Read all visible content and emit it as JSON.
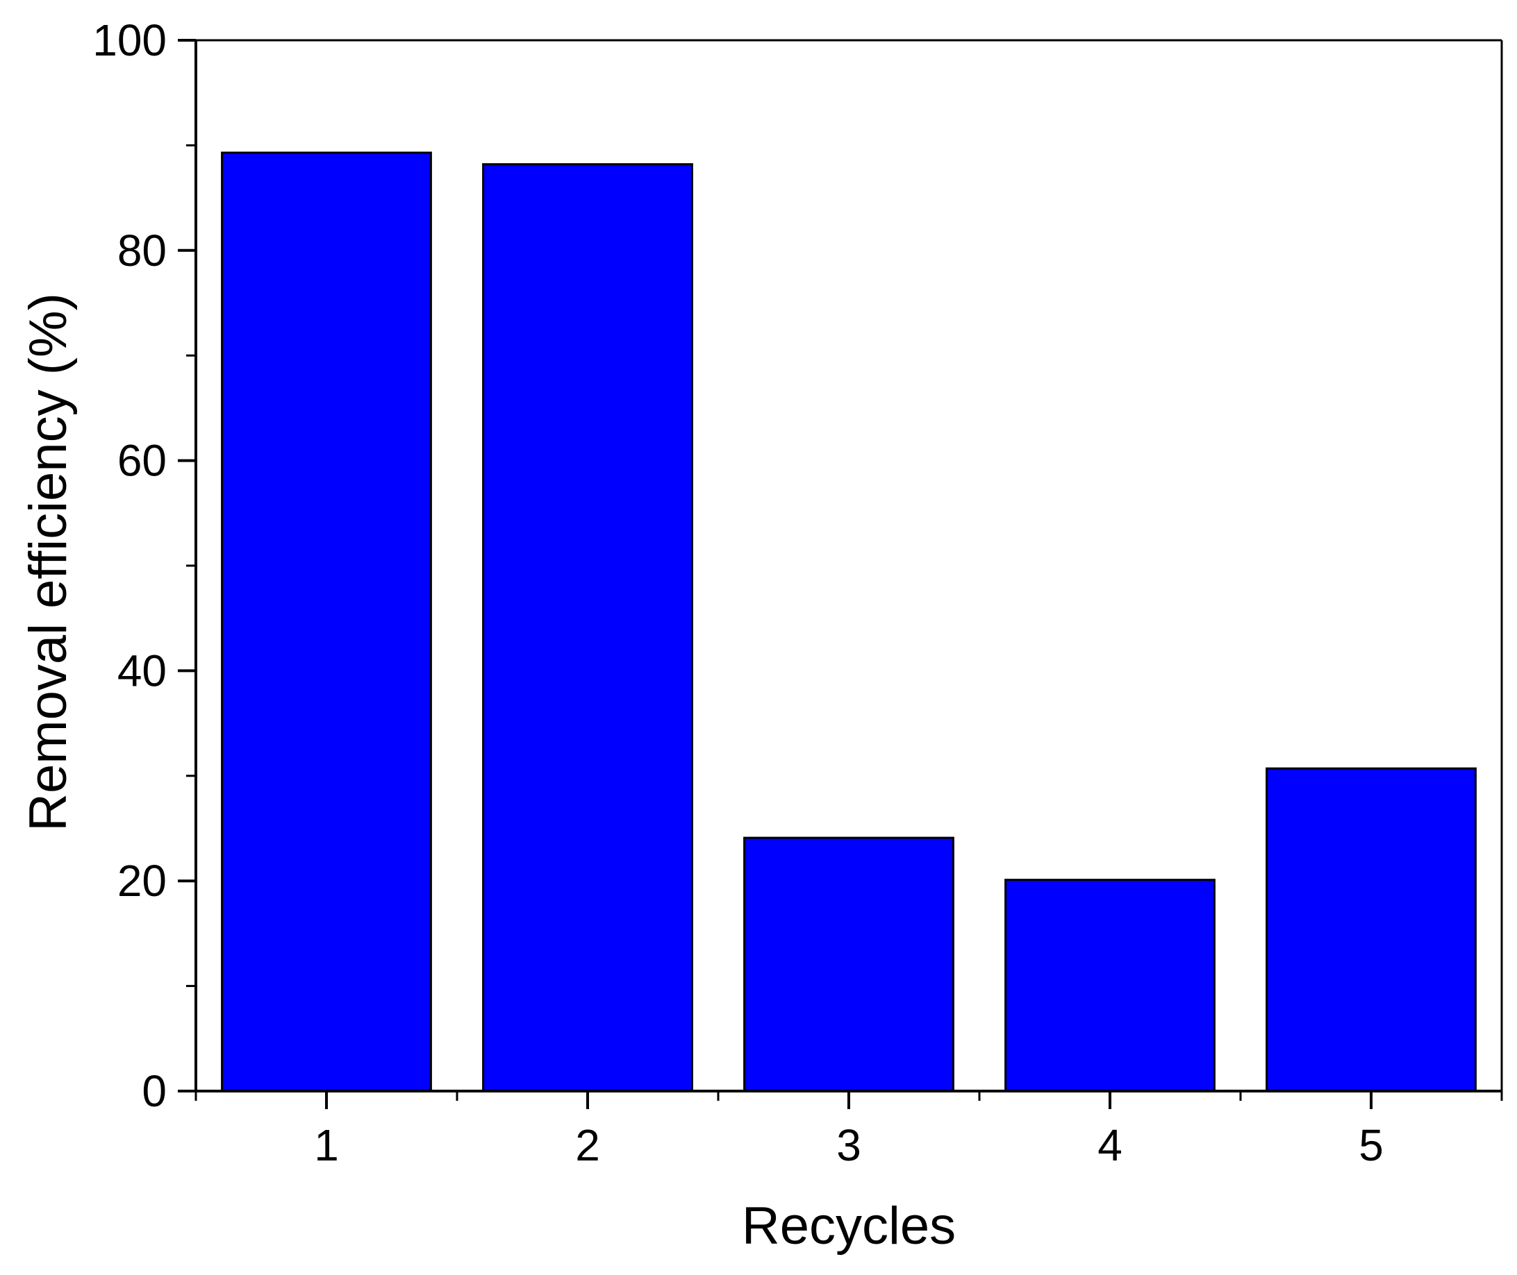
{
  "chart_data": {
    "type": "bar",
    "title": "",
    "xlabel": "Recycles",
    "ylabel": "Removal efficiency (%)",
    "categories": [
      "1",
      "2",
      "3",
      "4",
      "5"
    ],
    "values": [
      89.3,
      88.2,
      24.1,
      20.1,
      30.7
    ],
    "ylim": [
      0,
      100
    ],
    "yticks": [
      0,
      20,
      40,
      60,
      80,
      100
    ],
    "y_minor_step": 10,
    "grid": false,
    "legend": "none",
    "colors": {
      "bar_fill": "#0000ff",
      "bar_stroke": "#000000",
      "axis": "#000000",
      "background": "#ffffff"
    }
  }
}
